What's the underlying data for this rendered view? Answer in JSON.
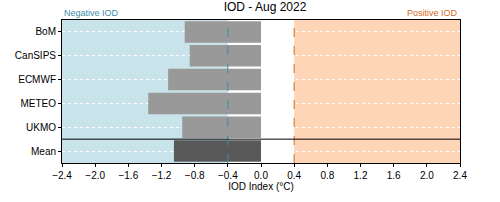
{
  "chart_data": {
    "type": "bar",
    "orientation": "horizontal",
    "title": "IOD - Aug 2022",
    "xlabel": "IOD Index (°C)",
    "categories": [
      "BoM",
      "CanSIPS",
      "ECMWF",
      "METEO",
      "UKMO",
      "Mean"
    ],
    "values": [
      -0.92,
      -0.86,
      -1.12,
      -1.36,
      -0.95,
      -1.05
    ],
    "colors": [
      "#999999",
      "#999999",
      "#999999",
      "#999999",
      "#999999",
      "#595959"
    ],
    "xlim": [
      -2.4,
      2.4
    ],
    "xticks": [
      {
        "value": -2.4,
        "label": "−2.4"
      },
      {
        "value": -2.0,
        "label": "−2.0"
      },
      {
        "value": -1.6,
        "label": "−1.6"
      },
      {
        "value": -1.2,
        "label": "−1.2"
      },
      {
        "value": -0.8,
        "label": "−0.8"
      },
      {
        "value": -0.4,
        "label": "−0.4"
      },
      {
        "value": 0,
        "label": "0.0"
      },
      {
        "value": 0.4,
        "label": "0.4"
      },
      {
        "value": 0.8,
        "label": "0.8"
      },
      {
        "value": 1.2,
        "label": "1.2"
      },
      {
        "value": 1.6,
        "label": "1.6"
      },
      {
        "value": 2.0,
        "label": "2.0"
      },
      {
        "value": 2.4,
        "label": "2.4"
      }
    ],
    "thresholds": [
      -0.4,
      0.4
    ],
    "annotations": [
      {
        "text": "Negative IOD",
        "color": "#3a8ea8"
      },
      {
        "text": "Positive IOD",
        "color": "#d2691e"
      }
    ],
    "region_colors": [
      "#c8e3ea",
      "#ffd5b8"
    ],
    "grid": true
  }
}
